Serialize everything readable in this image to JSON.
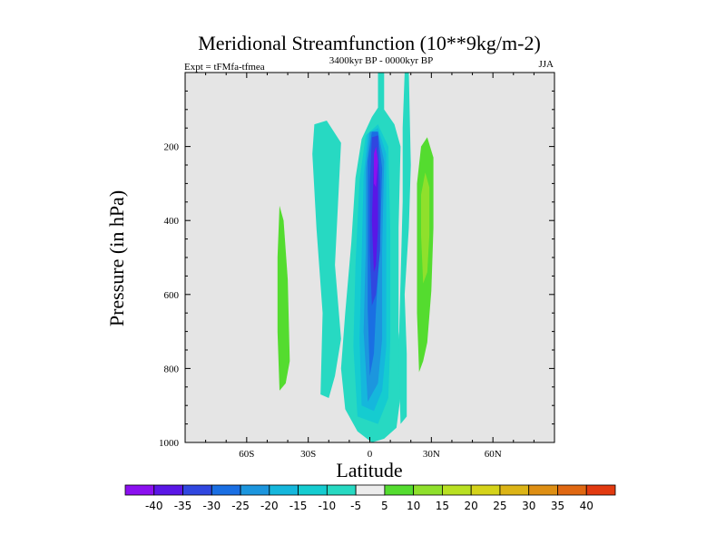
{
  "chart_data": {
    "type": "contour",
    "title": "Meridional Streamfunction (10**9kg/m-2)",
    "subtitle_left": "Expt = tFMfa-tfmea",
    "subtitle_center": "3400kyr BP - 0000kyr BP",
    "subtitle_right": "JJA",
    "xlabel": "Latitude",
    "ylabel": "Pressure (in hPa)",
    "xlim": [
      -90,
      90
    ],
    "ylim": [
      1000,
      0
    ],
    "x_ticks": [
      {
        "value": -60,
        "label": "60S"
      },
      {
        "value": -30,
        "label": "30S"
      },
      {
        "value": 0,
        "label": "0"
      },
      {
        "value": 30,
        "label": "30N"
      },
      {
        "value": 60,
        "label": "60N"
      }
    ],
    "y_ticks": [
      {
        "value": 200,
        "label": "200"
      },
      {
        "value": 400,
        "label": "400"
      },
      {
        "value": 600,
        "label": "600"
      },
      {
        "value": 800,
        "label": "800"
      },
      {
        "value": 1000,
        "label": "1000"
      }
    ],
    "colorbar": {
      "labels": [
        "-40",
        "-35",
        "-30",
        "-25",
        "-20",
        "-15",
        "-10",
        "-5",
        "5",
        "10",
        "15",
        "20",
        "25",
        "30",
        "35",
        "40"
      ],
      "colors": [
        "#8b10f0",
        "#5a16e6",
        "#3047e0",
        "#1a6fe3",
        "#1c96de",
        "#15b7dc",
        "#15ccd0",
        "#27d9c2",
        "#ececec",
        "#54dc2f",
        "#8fe02c",
        "#b9e022",
        "#d5d31a",
        "#dcb416",
        "#de8f14",
        "#e06812",
        "#e23a10"
      ]
    },
    "regions": [
      {
        "level": "-10 to -5",
        "name": "main-negative-cell",
        "points": [
          [
            -12,
            910
          ],
          [
            -14,
            800
          ],
          [
            -12,
            650
          ],
          [
            -9,
            460
          ],
          [
            -7,
            285
          ],
          [
            -4,
            180
          ],
          [
            1,
            120
          ],
          [
            4,
            95
          ],
          [
            4,
            0
          ],
          [
            7,
            0
          ],
          [
            7,
            100
          ],
          [
            12,
            140
          ],
          [
            15,
            200
          ],
          [
            14,
            420
          ],
          [
            14,
            700
          ],
          [
            16,
            830
          ],
          [
            13,
            960
          ],
          [
            7,
            990
          ],
          [
            1,
            1000
          ],
          [
            -6,
            970
          ]
        ]
      },
      {
        "level": "-10 to -5",
        "name": "southern-negative-cell",
        "points": [
          [
            -24,
            870
          ],
          [
            -23,
            650
          ],
          [
            -26,
            420
          ],
          [
            -28,
            220
          ],
          [
            -27,
            140
          ],
          [
            -21,
            130
          ],
          [
            -14,
            190
          ],
          [
            -17,
            520
          ],
          [
            -14,
            720
          ],
          [
            -17,
            820
          ],
          [
            -20,
            880
          ]
        ]
      },
      {
        "level": "-10 to -5",
        "name": "northern-upper-negative",
        "points": [
          [
            17,
            0
          ],
          [
            19,
            0
          ],
          [
            20,
            250
          ],
          [
            19,
            420
          ],
          [
            17,
            600
          ],
          [
            18,
            760
          ],
          [
            18,
            930
          ],
          [
            15,
            950
          ],
          [
            14,
            760
          ],
          [
            15,
            560
          ],
          [
            16,
            350
          ],
          [
            16,
            150
          ]
        ]
      },
      {
        "level": "-15 to -10",
        "name": "core-ring-1",
        "points": [
          [
            -6,
            930
          ],
          [
            -8,
            740
          ],
          [
            -7,
            520
          ],
          [
            -5,
            290
          ],
          [
            -2,
            170
          ],
          [
            4,
            140
          ],
          [
            9,
            200
          ],
          [
            10,
            430
          ],
          [
            10,
            720
          ],
          [
            9,
            880
          ],
          [
            4,
            950
          ]
        ]
      },
      {
        "level": "-20 to -15",
        "name": "core-ring-2",
        "points": [
          [
            -4,
            900
          ],
          [
            -5,
            720
          ],
          [
            -4,
            500
          ],
          [
            -3,
            280
          ],
          [
            -1,
            165
          ],
          [
            4,
            150
          ],
          [
            8,
            220
          ],
          [
            8,
            460
          ],
          [
            8,
            740
          ],
          [
            6,
            860
          ],
          [
            2,
            915
          ]
        ]
      },
      {
        "level": "-25 to -20",
        "name": "core-ring-3",
        "points": [
          [
            -1,
            890
          ],
          [
            -3,
            700
          ],
          [
            -2,
            480
          ],
          [
            -2,
            260
          ],
          [
            0,
            160
          ],
          [
            4,
            160
          ],
          [
            7,
            240
          ],
          [
            6,
            480
          ],
          [
            6,
            720
          ],
          [
            4,
            840
          ]
        ]
      },
      {
        "level": "-30 to -25",
        "name": "core-ring-4",
        "points": [
          [
            0,
            820
          ],
          [
            -1,
            640
          ],
          [
            -1,
            440
          ],
          [
            -1,
            240
          ],
          [
            1,
            160
          ],
          [
            4,
            160
          ],
          [
            6,
            260
          ],
          [
            5,
            460
          ],
          [
            3,
            640
          ],
          [
            2,
            760
          ]
        ]
      },
      {
        "level": "-35 to -30",
        "name": "core-ring-5",
        "points": [
          [
            1,
            630
          ],
          [
            0,
            480
          ],
          [
            0,
            300
          ],
          [
            1,
            175
          ],
          [
            4,
            170
          ],
          [
            5,
            300
          ],
          [
            5,
            480
          ],
          [
            3,
            600
          ]
        ]
      },
      {
        "level": "-40 to -35",
        "name": "core-ring-6",
        "points": [
          [
            2,
            540
          ],
          [
            1,
            400
          ],
          [
            2,
            240
          ],
          [
            3,
            200
          ],
          [
            4,
            250
          ],
          [
            4,
            420
          ],
          [
            3,
            520
          ]
        ]
      },
      {
        "level": "-40 and below",
        "name": "core-extreme",
        "points": [
          [
            2,
            300
          ],
          [
            2,
            220
          ],
          [
            3,
            200
          ],
          [
            4,
            240
          ],
          [
            3,
            310
          ]
        ]
      },
      {
        "level": "5 to 10",
        "name": "southern-positive-cell",
        "points": [
          [
            -44,
            860
          ],
          [
            -45,
            700
          ],
          [
            -45,
            500
          ],
          [
            -44,
            360
          ],
          [
            -42,
            400
          ],
          [
            -40,
            560
          ],
          [
            -39,
            780
          ],
          [
            -41,
            840
          ]
        ]
      },
      {
        "level": "5 to 10",
        "name": "northern-positive-cell",
        "points": [
          [
            24,
            810
          ],
          [
            23,
            650
          ],
          [
            23,
            460
          ],
          [
            23,
            300
          ],
          [
            25,
            200
          ],
          [
            28,
            175
          ],
          [
            31,
            230
          ],
          [
            31,
            420
          ],
          [
            30,
            590
          ],
          [
            28,
            730
          ],
          [
            26,
            780
          ]
        ]
      },
      {
        "level": "10 to 15",
        "name": "northern-positive-core",
        "points": [
          [
            26,
            570
          ],
          [
            25,
            440
          ],
          [
            25,
            330
          ],
          [
            27,
            270
          ],
          [
            29,
            310
          ],
          [
            29,
            440
          ],
          [
            28,
            540
          ]
        ]
      }
    ]
  }
}
